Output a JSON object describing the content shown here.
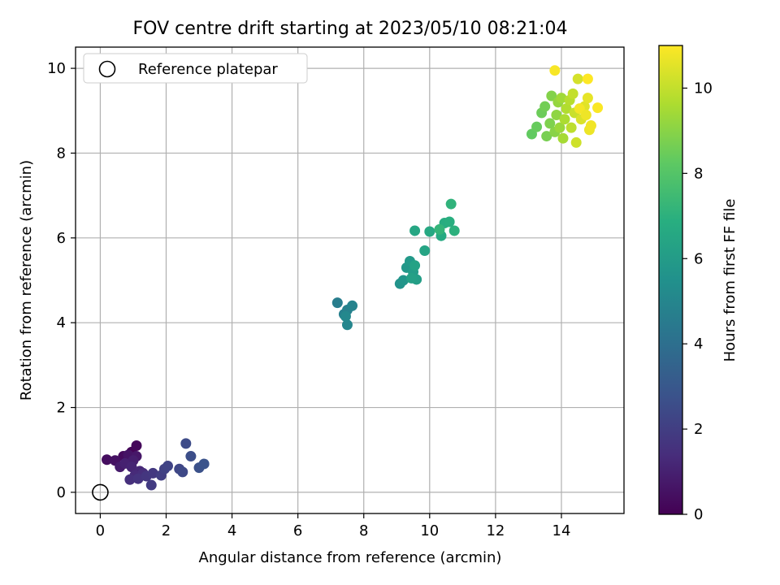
{
  "chart_data": {
    "type": "scatter",
    "title": "FOV centre drift starting at 2023/05/10 08:21:04",
    "xlabel": "Angular distance from reference (arcmin)",
    "ylabel": "Rotation from reference (arcmin)",
    "xlim": [
      -0.75,
      15.9
    ],
    "ylim": [
      -0.5,
      10.5
    ],
    "xticks": [
      "0",
      "2",
      "4",
      "6",
      "8",
      "10",
      "12",
      "14"
    ],
    "yticks": [
      "0",
      "2",
      "4",
      "6",
      "8",
      "10"
    ],
    "grid": true,
    "legend": {
      "placement": "upper-left",
      "entries": [
        "Reference platepar"
      ]
    },
    "reference_point": {
      "x": 0,
      "y": 0
    },
    "colorbar": {
      "label": "Hours from first FF file",
      "range": [
        0,
        11
      ],
      "ticks": [
        "0",
        "2",
        "4",
        "6",
        "8",
        "10"
      ],
      "colormap": "viridis"
    },
    "points": [
      {
        "x": 0.95,
        "y": 0.95,
        "t": 0.1
      },
      {
        "x": 1.1,
        "y": 1.1,
        "t": 0.2
      },
      {
        "x": 0.7,
        "y": 0.85,
        "t": 0.3
      },
      {
        "x": 0.2,
        "y": 0.77,
        "t": 0.4
      },
      {
        "x": 0.45,
        "y": 0.75,
        "t": 0.5
      },
      {
        "x": 0.85,
        "y": 0.88,
        "t": 0.6
      },
      {
        "x": 1.1,
        "y": 0.85,
        "t": 0.7
      },
      {
        "x": 0.6,
        "y": 0.6,
        "t": 0.8
      },
      {
        "x": 1.0,
        "y": 0.75,
        "t": 0.9
      },
      {
        "x": 0.75,
        "y": 0.68,
        "t": 1.0
      },
      {
        "x": 0.95,
        "y": 0.6,
        "t": 1.1
      },
      {
        "x": 1.2,
        "y": 0.5,
        "t": 1.2
      },
      {
        "x": 1.05,
        "y": 0.4,
        "t": 1.3
      },
      {
        "x": 1.3,
        "y": 0.45,
        "t": 1.4
      },
      {
        "x": 0.9,
        "y": 0.3,
        "t": 1.5
      },
      {
        "x": 1.15,
        "y": 0.32,
        "t": 1.6
      },
      {
        "x": 1.4,
        "y": 0.38,
        "t": 1.7
      },
      {
        "x": 1.6,
        "y": 0.45,
        "t": 1.8
      },
      {
        "x": 1.55,
        "y": 0.17,
        "t": 1.9
      },
      {
        "x": 1.85,
        "y": 0.4,
        "t": 2.0
      },
      {
        "x": 1.95,
        "y": 0.55,
        "t": 2.1
      },
      {
        "x": 2.05,
        "y": 0.62,
        "t": 2.2
      },
      {
        "x": 2.4,
        "y": 0.55,
        "t": 2.3
      },
      {
        "x": 2.5,
        "y": 0.48,
        "t": 2.4
      },
      {
        "x": 2.6,
        "y": 1.15,
        "t": 2.5
      },
      {
        "x": 2.75,
        "y": 0.85,
        "t": 2.6
      },
      {
        "x": 3.0,
        "y": 0.58,
        "t": 2.7
      },
      {
        "x": 3.15,
        "y": 0.67,
        "t": 2.8
      },
      {
        "x": 7.2,
        "y": 4.47,
        "t": 4.6
      },
      {
        "x": 7.4,
        "y": 4.2,
        "t": 4.7
      },
      {
        "x": 7.5,
        "y": 4.3,
        "t": 4.8
      },
      {
        "x": 7.65,
        "y": 4.4,
        "t": 4.9
      },
      {
        "x": 7.5,
        "y": 3.95,
        "t": 5.0
      },
      {
        "x": 7.45,
        "y": 4.15,
        "t": 5.1
      },
      {
        "x": 9.1,
        "y": 4.92,
        "t": 5.6
      },
      {
        "x": 9.2,
        "y": 5.0,
        "t": 5.7
      },
      {
        "x": 9.3,
        "y": 5.3,
        "t": 5.8
      },
      {
        "x": 9.4,
        "y": 5.45,
        "t": 5.9
      },
      {
        "x": 9.5,
        "y": 5.2,
        "t": 6.0
      },
      {
        "x": 9.6,
        "y": 5.02,
        "t": 6.1
      },
      {
        "x": 9.45,
        "y": 5.05,
        "t": 6.2
      },
      {
        "x": 9.55,
        "y": 5.35,
        "t": 6.3
      },
      {
        "x": 9.85,
        "y": 5.7,
        "t": 6.4
      },
      {
        "x": 9.55,
        "y": 6.17,
        "t": 6.5
      },
      {
        "x": 10.0,
        "y": 6.15,
        "t": 6.6
      },
      {
        "x": 10.35,
        "y": 6.05,
        "t": 6.7
      },
      {
        "x": 10.45,
        "y": 6.35,
        "t": 6.8
      },
      {
        "x": 10.6,
        "y": 6.38,
        "t": 6.9
      },
      {
        "x": 10.75,
        "y": 6.17,
        "t": 7.0
      },
      {
        "x": 10.65,
        "y": 6.8,
        "t": 7.1
      },
      {
        "x": 10.3,
        "y": 6.2,
        "t": 7.2
      },
      {
        "x": 13.1,
        "y": 8.45,
        "t": 8.3
      },
      {
        "x": 13.25,
        "y": 8.62,
        "t": 8.4
      },
      {
        "x": 13.4,
        "y": 8.95,
        "t": 8.5
      },
      {
        "x": 13.5,
        "y": 9.1,
        "t": 8.6
      },
      {
        "x": 13.55,
        "y": 8.4,
        "t": 8.7
      },
      {
        "x": 13.65,
        "y": 8.7,
        "t": 8.8
      },
      {
        "x": 13.7,
        "y": 9.35,
        "t": 8.9
      },
      {
        "x": 13.8,
        "y": 8.5,
        "t": 9.0
      },
      {
        "x": 13.85,
        "y": 8.9,
        "t": 9.1
      },
      {
        "x": 13.9,
        "y": 9.2,
        "t": 9.2
      },
      {
        "x": 13.95,
        "y": 8.6,
        "t": 9.3
      },
      {
        "x": 14.0,
        "y": 9.3,
        "t": 9.4
      },
      {
        "x": 14.05,
        "y": 8.35,
        "t": 9.5
      },
      {
        "x": 14.1,
        "y": 8.8,
        "t": 9.6
      },
      {
        "x": 14.15,
        "y": 9.05,
        "t": 9.7
      },
      {
        "x": 14.25,
        "y": 9.25,
        "t": 9.8
      },
      {
        "x": 14.3,
        "y": 8.6,
        "t": 9.9
      },
      {
        "x": 14.35,
        "y": 9.4,
        "t": 10.0
      },
      {
        "x": 14.4,
        "y": 8.95,
        "t": 10.1
      },
      {
        "x": 14.45,
        "y": 8.25,
        "t": 10.2
      },
      {
        "x": 14.5,
        "y": 9.75,
        "t": 10.3
      },
      {
        "x": 14.6,
        "y": 8.8,
        "t": 10.4
      },
      {
        "x": 14.7,
        "y": 9.1,
        "t": 10.5
      },
      {
        "x": 14.8,
        "y": 9.3,
        "t": 10.6
      },
      {
        "x": 14.85,
        "y": 8.55,
        "t": 10.7
      },
      {
        "x": 14.9,
        "y": 8.65,
        "t": 10.8
      },
      {
        "x": 13.8,
        "y": 9.95,
        "t": 10.9
      },
      {
        "x": 14.8,
        "y": 9.75,
        "t": 11.0
      },
      {
        "x": 15.1,
        "y": 9.07,
        "t": 10.95
      },
      {
        "x": 14.55,
        "y": 9.05,
        "t": 10.85
      },
      {
        "x": 14.75,
        "y": 8.9,
        "t": 10.75
      }
    ]
  }
}
